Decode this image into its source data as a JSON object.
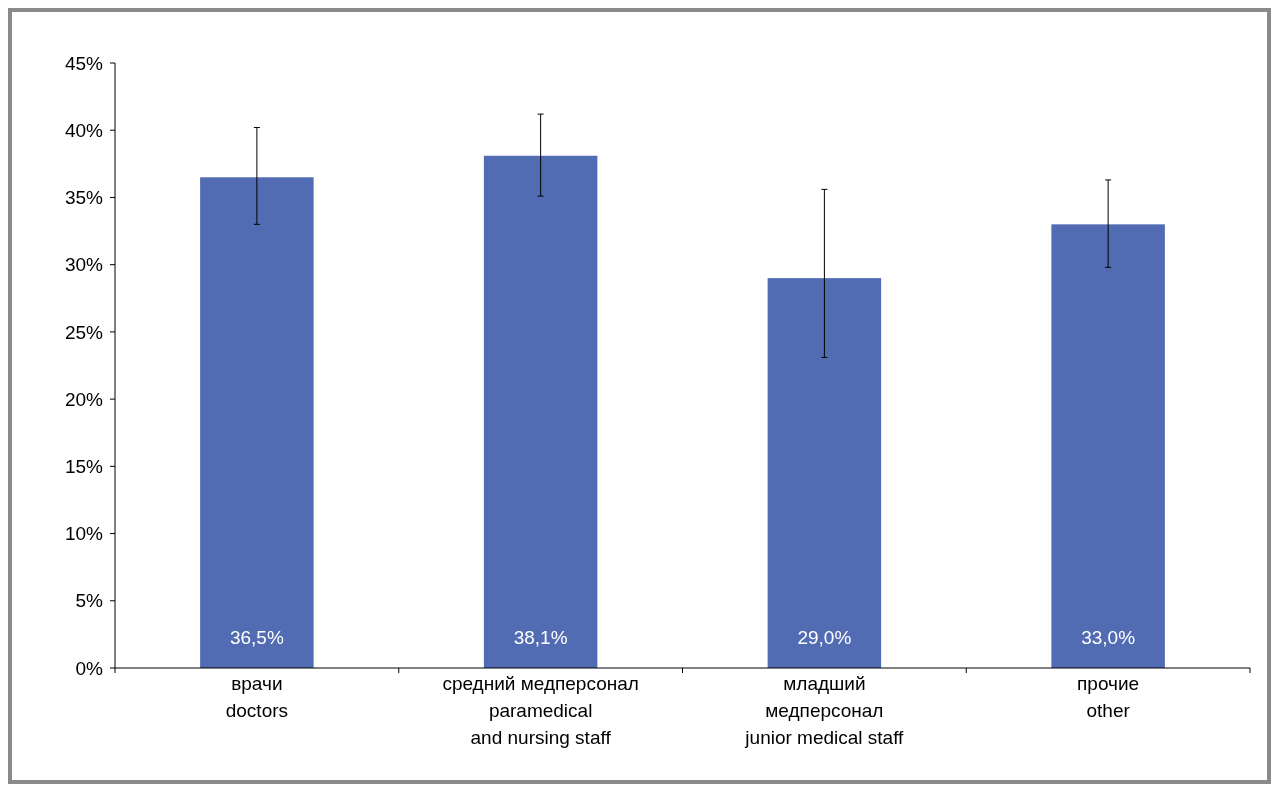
{
  "chart_data": {
    "type": "bar",
    "categories": [
      "врачи\ndoctors",
      "средний медперсонал\nparamedical\nand nursing staff",
      "младший\nмедперсонал\njunior medical staff",
      "прочие\nother"
    ],
    "values": [
      36.5,
      38.1,
      29.0,
      33.0
    ],
    "value_labels": [
      "36,5%",
      "38,1%",
      "29,0%",
      "33,0%"
    ],
    "errors": [
      [
        33.0,
        40.2
      ],
      [
        35.1,
        41.2
      ],
      [
        23.1,
        35.6
      ],
      [
        29.8,
        36.3
      ]
    ],
    "color": "#516cb3",
    "ylim": [
      0,
      45
    ],
    "yticks": [
      {
        "value": 0,
        "label": "0%"
      },
      {
        "value": 5,
        "label": "5%"
      },
      {
        "value": 10,
        "label": "10%"
      },
      {
        "value": 15,
        "label": "15%"
      },
      {
        "value": 20,
        "label": "20%"
      },
      {
        "value": 25,
        "label": "25%"
      },
      {
        "value": 30,
        "label": "30%"
      },
      {
        "value": 35,
        "label": "35%"
      },
      {
        "value": 40,
        "label": "40%"
      },
      {
        "value": 45,
        "label": "45%"
      }
    ],
    "grid": false
  }
}
